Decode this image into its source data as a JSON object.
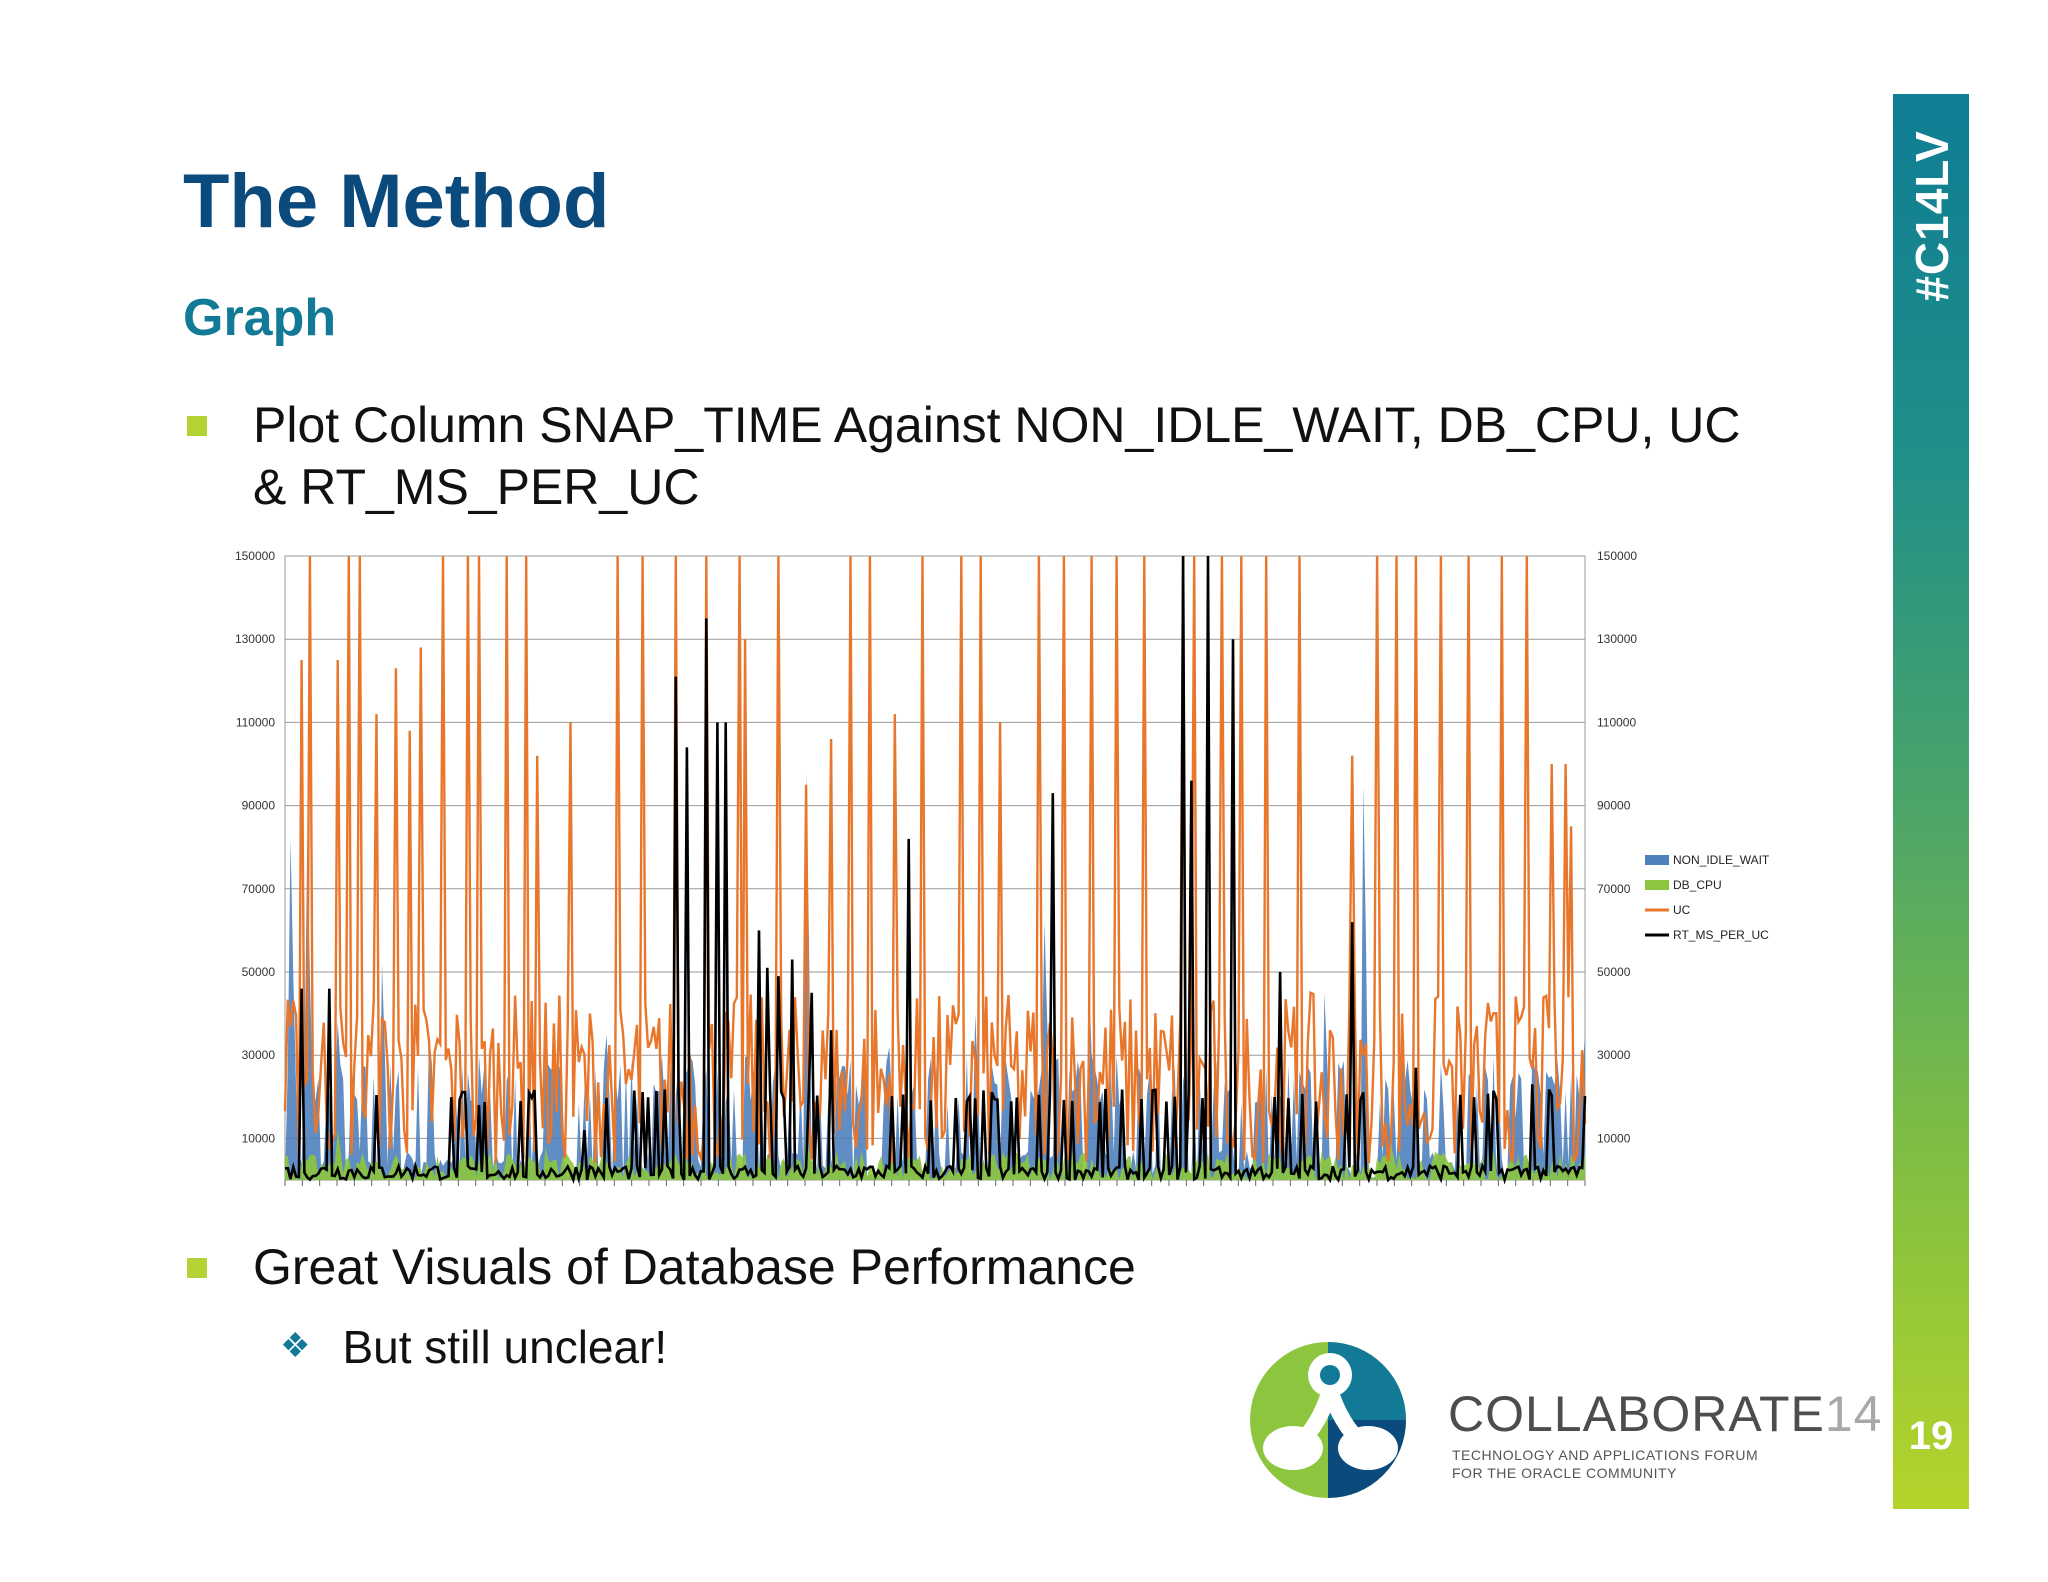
{
  "slide": {
    "title": "The Method",
    "subtitle": "Graph",
    "bullets": [
      {
        "line1": "Plot Column SNAP_TIME Against NON_IDLE_WAIT, DB_CPU, UC",
        "line2": "& RT_MS_PER_UC"
      },
      {
        "line1": "Great Visuals of Database Performance"
      }
    ],
    "sub_bullet": "But still unclear!",
    "hashtag": "#C14LV",
    "page_number": "19",
    "brand": {
      "name": "COLLABORATE",
      "number": "14",
      "tagline_line1": "TECHNOLOGY AND APPLICATIONS FORUM",
      "tagline_line2": "FOR THE ORACLE COMMUNITY"
    },
    "colors": {
      "title": "#0b4a7d",
      "subtitle": "#127a96",
      "bullet": "#b3d334"
    }
  },
  "chart_data": {
    "type": "line",
    "title": "",
    "xlabel": "",
    "ylabel": "",
    "ylim": [
      0,
      150000
    ],
    "yticks": [
      10000,
      30000,
      50000,
      70000,
      90000,
      110000,
      130000,
      150000
    ],
    "secondary_yticks": [
      10000,
      30000,
      50000,
      70000,
      90000,
      110000,
      130000,
      150000
    ],
    "grid": true,
    "legend_position": "right",
    "x_count": 470,
    "series": [
      {
        "name": "NON_IDLE_WAIT",
        "kind": "area",
        "color": "#4f81bd",
        "peaks": [
          [
            5,
            82000
          ],
          [
            17,
            82000
          ],
          [
            40,
            38000
          ],
          [
            75,
            52000
          ],
          [
            110,
            35000
          ],
          [
            150,
            30000
          ],
          [
            200,
            30000
          ],
          [
            248,
            35000
          ],
          [
            290,
            30000
          ],
          [
            400,
            98000
          ],
          [
            465,
            32000
          ],
          [
            530,
            40000
          ],
          [
            585,
            62000
          ],
          [
            618,
            50000
          ],
          [
            640,
            30000
          ],
          [
            690,
            25000
          ],
          [
            800,
            45000
          ],
          [
            830,
            95000
          ],
          [
            890,
            28000
          ],
          [
            945,
            25000
          ],
          [
            960,
            30000
          ],
          [
            975,
            25000
          ],
          [
            1000,
            35000
          ]
        ],
        "base": 9000
      },
      {
        "name": "DB_CPU",
        "kind": "area",
        "color": "#8cc63e",
        "peaks": [
          [
            40,
            12000
          ],
          [
            200,
            8000
          ],
          [
            300,
            6000
          ],
          [
            400,
            12000
          ],
          [
            465,
            7000
          ],
          [
            600,
            5000
          ],
          [
            700,
            7000
          ],
          [
            850,
            8000
          ],
          [
            1000,
            6000
          ]
        ],
        "base": 3000
      },
      {
        "name": "UC",
        "kind": "line",
        "color": "#e8762b",
        "peaks": [
          [
            12,
            125000
          ],
          [
            20,
            150000
          ],
          [
            40,
            125000
          ],
          [
            50,
            150000
          ],
          [
            58,
            150000
          ],
          [
            70,
            112000
          ],
          [
            85,
            123000
          ],
          [
            96,
            108000
          ],
          [
            105,
            128000
          ],
          [
            122,
            150000
          ],
          [
            140,
            150000
          ],
          [
            150,
            150000
          ],
          [
            170,
            150000
          ],
          [
            185,
            150000
          ],
          [
            195,
            102000
          ],
          [
            220,
            110000
          ],
          [
            255,
            150000
          ],
          [
            275,
            150000
          ],
          [
            300,
            150000
          ],
          [
            325,
            150000
          ],
          [
            350,
            150000
          ],
          [
            355,
            130000
          ],
          [
            380,
            150000
          ],
          [
            400,
            95000
          ],
          [
            420,
            106000
          ],
          [
            435,
            150000
          ],
          [
            450,
            150000
          ],
          [
            470,
            112000
          ],
          [
            490,
            150000
          ],
          [
            520,
            150000
          ],
          [
            535,
            150000
          ],
          [
            550,
            110000
          ],
          [
            580,
            150000
          ],
          [
            600,
            150000
          ],
          [
            620,
            150000
          ],
          [
            640,
            150000
          ],
          [
            660,
            150000
          ],
          [
            690,
            150000
          ],
          [
            700,
            150000
          ],
          [
            720,
            150000
          ],
          [
            735,
            150000
          ],
          [
            755,
            150000
          ],
          [
            780,
            150000
          ],
          [
            820,
            102000
          ],
          [
            840,
            150000
          ],
          [
            855,
            150000
          ],
          [
            870,
            150000
          ],
          [
            890,
            150000
          ],
          [
            910,
            150000
          ],
          [
            935,
            150000
          ],
          [
            955,
            150000
          ],
          [
            975,
            100000
          ],
          [
            985,
            100000
          ],
          [
            990,
            85000
          ]
        ],
        "base": 10000
      },
      {
        "name": "RT_MS_PER_UC",
        "kind": "line",
        "color": "#000000",
        "peaks": [
          [
            12,
            46000
          ],
          [
            35,
            46000
          ],
          [
            150,
            18000
          ],
          [
            230,
            12000
          ],
          [
            300,
            121000
          ],
          [
            310,
            104000
          ],
          [
            325,
            135000
          ],
          [
            333,
            110000
          ],
          [
            340,
            110000
          ],
          [
            365,
            60000
          ],
          [
            372,
            51000
          ],
          [
            380,
            49000
          ],
          [
            390,
            53000
          ],
          [
            405,
            45000
          ],
          [
            420,
            36000
          ],
          [
            480,
            82000
          ],
          [
            590,
            93000
          ],
          [
            690,
            150000
          ],
          [
            698,
            96000
          ],
          [
            710,
            150000
          ],
          [
            730,
            130000
          ],
          [
            765,
            50000
          ],
          [
            820,
            62000
          ],
          [
            870,
            27000
          ],
          [
            960,
            23000
          ]
        ],
        "base": 1500
      }
    ]
  }
}
